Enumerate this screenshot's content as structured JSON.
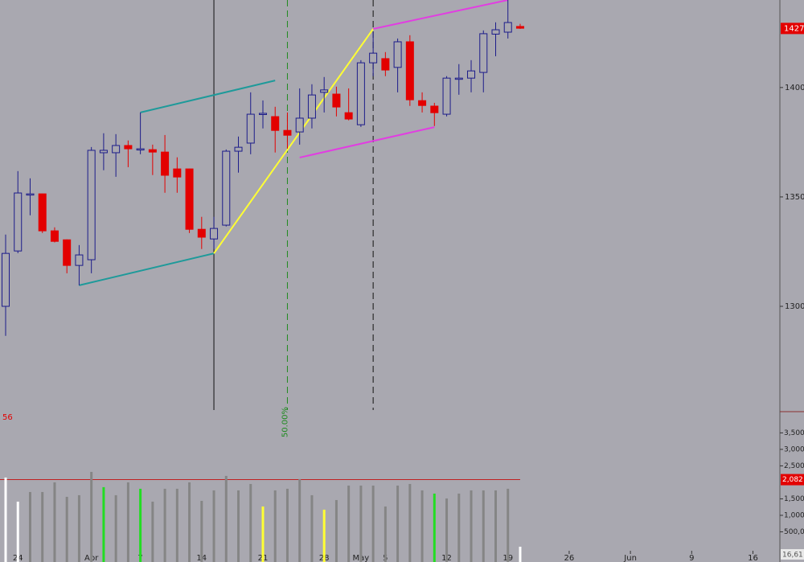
{
  "chart_data": {
    "type": "candlestick",
    "xlim": [
      -0.46,
      63.2
    ],
    "xticks": [
      {
        "value": 1,
        "label": "24"
      },
      {
        "value": 7,
        "label": "Apr"
      },
      {
        "value": 11,
        "label": "7"
      },
      {
        "value": 16,
        "label": "14"
      },
      {
        "value": 21,
        "label": "21"
      },
      {
        "value": 26,
        "label": "28"
      },
      {
        "value": 29,
        "label": "May"
      },
      {
        "value": 31,
        "label": "5"
      },
      {
        "value": 36,
        "label": "12"
      },
      {
        "value": 41,
        "label": "19"
      },
      {
        "value": 46,
        "label": "26"
      },
      {
        "value": 51,
        "label": "Jun"
      },
      {
        "value": 56,
        "label": "9"
      },
      {
        "value": 61,
        "label": "16"
      }
    ],
    "ylim": [
      1252.6,
      1440
    ],
    "yticks": [
      {
        "value": 1300,
        "label": "1300."
      },
      {
        "value": 1350,
        "label": "1350."
      },
      {
        "value": 1400,
        "label": "1400."
      }
    ],
    "up_color": "#1c1c8a",
    "down_color": "#e30000",
    "open": [
      1300,
      1325.3,
      1351.4,
      1351.4,
      1334.5,
      1330.4,
      1318.7,
      1321.3,
      1370.2,
      1370.2,
      1373.5,
      1372,
      1371.6,
      1370.5,
      1362.8,
      1362.8,
      1335.2,
      1330.8,
      1337.1,
      1370.9,
      1374.6,
      1388.2,
      1386.7,
      1380.4,
      1379.7,
      1386,
      1397.8,
      1397,
      1388.5,
      1383,
      1411.3,
      1413.2,
      1409.2,
      1420.9,
      1394,
      1391.5,
      1387.8,
      1404.3,
      1404.3,
      1406.9,
      1424.4,
      1425.3,
      1427.9
    ],
    "high": [
      1332.8,
      1361.8,
      1358.5,
      1351.5,
      1336.1,
      1330.6,
      1328,
      1372.8,
      1379.1,
      1378.7,
      1375.8,
      1388.6,
      1373.9,
      1378.3,
      1368.1,
      1362.9,
      1340.9,
      1340.9,
      1371.7,
      1377.6,
      1397.8,
      1394.1,
      1391.2,
      1388.6,
      1399.6,
      1401.5,
      1404.8,
      1400.4,
      1399.6,
      1412.5,
      1425.4,
      1416.2,
      1422.4,
      1423.9,
      1397.8,
      1393,
      1405.2,
      1410.7,
      1412.5,
      1426.1,
      1429.8,
      1440,
      1429.1
    ],
    "low": [
      1286.5,
      1324.3,
      1341.6,
      1333.5,
      1329.2,
      1315.1,
      1309.6,
      1315.1,
      1362.2,
      1359.2,
      1363.6,
      1369.5,
      1360,
      1351.9,
      1351.9,
      1333.5,
      1326.2,
      1326.2,
      1336.5,
      1361.1,
      1369.5,
      1381.3,
      1370.3,
      1372.1,
      1373.9,
      1381.3,
      1388.6,
      1386.8,
      1385,
      1382,
      1405.2,
      1405.2,
      1397.8,
      1391.6,
      1388.6,
      1382.4,
      1386.8,
      1396.7,
      1397.8,
      1397.8,
      1414.3,
      1422.4,
      1426.8
    ],
    "close": [
      1324.2,
      1351.8,
      1351.4,
      1334.5,
      1329.7,
      1318.7,
      1323.5,
      1371.3,
      1371.3,
      1373.5,
      1372,
      1372,
      1370.5,
      1359.9,
      1359.1,
      1335.2,
      1331.6,
      1335.6,
      1370.9,
      1372.7,
      1387.8,
      1388.2,
      1380.4,
      1378.2,
      1386,
      1396.6,
      1398.9,
      1391.1,
      1385.6,
      1411.3,
      1415.7,
      1408,
      1420.9,
      1394.4,
      1391.8,
      1388.5,
      1404.3,
      1404.3,
      1407.6,
      1424.6,
      1426.4,
      1429.7,
      1427.1
    ],
    "last_price": 1427,
    "trendlines": [
      {
        "color": "#1e9a9a",
        "points": [
          [
            6,
            1309.6
          ],
          [
            17,
            1324.2
          ]
        ]
      },
      {
        "color": "#1e9a9a",
        "points": [
          [
            11,
            1388.6
          ],
          [
            22,
            1403.2
          ]
        ]
      },
      {
        "color": "#ffff33",
        "points": [
          [
            17,
            1324.2
          ],
          [
            30,
            1426.8
          ]
        ]
      },
      {
        "color": "#e23de2",
        "points": [
          [
            24,
            1368
          ],
          [
            35,
            1381.9
          ]
        ]
      },
      {
        "color": "#e23de2",
        "points": [
          [
            30,
            1426.8
          ],
          [
            41,
            1440
          ]
        ]
      }
    ],
    "vlines": [
      {
        "x": 17,
        "color": "#111111",
        "dash": false
      },
      {
        "x": 23,
        "color": "#1f8a1f",
        "dash": true,
        "label": "50.00%"
      },
      {
        "x": 30,
        "color": "#111111",
        "dash": true
      }
    ],
    "volume": {
      "values": [
        2146,
        1415,
        1707,
        1707,
        2000,
        1561,
        1610,
        2317,
        1854,
        1610,
        2000,
        1805,
        1415,
        1805,
        1805,
        2000,
        1439,
        1756,
        2195,
        1756,
        1951,
        1268,
        1756,
        1805,
        2098,
        1610,
        1171,
        1463,
        1902,
        1902,
        1902,
        1268,
        1902,
        1951,
        1756,
        1659,
        1512,
        1659,
        1756,
        1756,
        1756,
        1805,
        49
      ],
      "colors": [
        "#ffffff",
        "#ffffff",
        "#858585",
        "#858585",
        "#858585",
        "#858585",
        "#858585",
        "#858585",
        "#22dd22",
        "#858585",
        "#858585",
        "#22dd22",
        "#858585",
        "#858585",
        "#858585",
        "#858585",
        "#858585",
        "#858585",
        "#858585",
        "#858585",
        "#858585",
        "#ffff33",
        "#858585",
        "#858585",
        "#858585",
        "#858585",
        "#ffff33",
        "#858585",
        "#858585",
        "#858585",
        "#858585",
        "#858585",
        "#858585",
        "#858585",
        "#858585",
        "#22dd22",
        "#858585",
        "#858585",
        "#858585",
        "#858585",
        "#858585",
        "#858585",
        "#ffffff"
      ],
      "ylim": [
        -415,
        4070
      ],
      "yticks": [
        {
          "value": 500,
          "label": "500,0"
        },
        {
          "value": 1000,
          "label": "1,000"
        },
        {
          "value": 1500,
          "label": "1,500"
        },
        {
          "value": 2500,
          "label": "2,500"
        },
        {
          "value": 3000,
          "label": "3,000"
        },
        {
          "value": 3500,
          "label": "3,500"
        }
      ],
      "reference": {
        "value": 2082,
        "label": "2,082"
      },
      "panel_label": "56",
      "last_label": "16,61"
    }
  }
}
